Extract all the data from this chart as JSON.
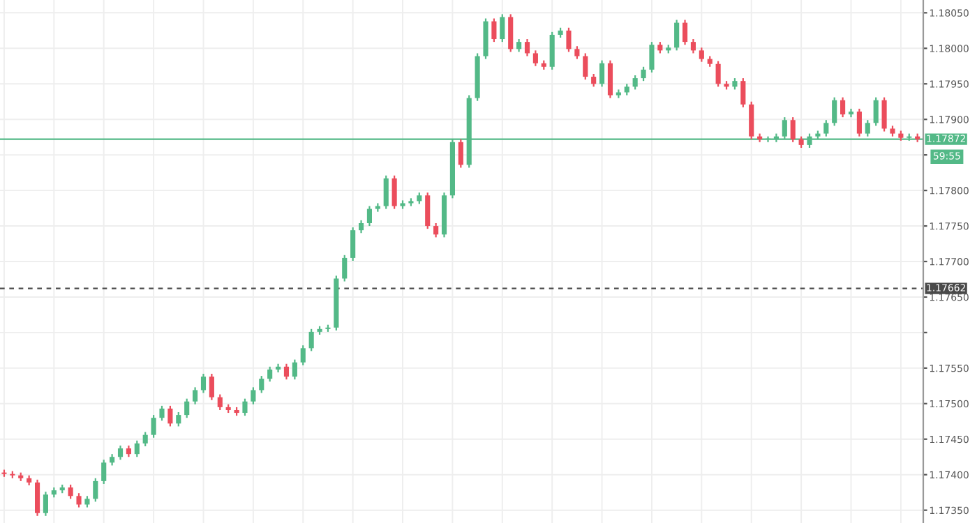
{
  "chart_data": {
    "type": "candlestick",
    "categories": [
      null,
      null,
      null,
      null,
      null,
      null,
      null,
      null,
      null,
      null,
      null,
      null,
      null,
      null,
      null,
      null,
      null,
      null,
      null,
      null,
      null,
      null,
      null,
      null,
      null,
      null,
      null,
      null,
      null,
      null,
      null,
      null,
      null,
      null,
      null,
      null,
      null,
      null,
      null,
      null,
      null,
      null,
      null,
      null,
      null,
      null,
      null,
      null,
      null,
      null,
      null,
      null,
      null,
      null,
      null,
      null,
      null,
      null,
      null,
      null,
      null,
      null,
      null,
      null,
      null,
      null,
      null,
      null,
      null,
      null,
      null,
      null,
      null,
      null,
      null,
      null,
      null,
      null,
      null,
      null,
      null,
      null,
      null,
      null,
      null,
      null,
      null,
      null,
      null,
      null,
      null,
      null,
      null,
      null,
      null,
      null,
      null,
      null,
      null,
      null,
      null,
      null,
      null,
      null,
      null,
      null,
      null,
      null,
      null,
      null,
      null
    ],
    "ohlc": [
      [
        1.17403,
        1.17407,
        1.17397,
        1.17401
      ],
      [
        1.17401,
        1.17405,
        1.17395,
        1.17399
      ],
      [
        1.17399,
        1.17403,
        1.17391,
        1.17395
      ],
      [
        1.17395,
        1.17399,
        1.17385,
        1.17389
      ],
      [
        1.17389,
        1.17393,
        1.17342,
        1.17346
      ],
      [
        1.17346,
        1.17376,
        1.17342,
        1.17372
      ],
      [
        1.17372,
        1.17382,
        1.17368,
        1.17378
      ],
      [
        1.17378,
        1.17386,
        1.17374,
        1.17382
      ],
      [
        1.17382,
        1.17386,
        1.17366,
        1.1737
      ],
      [
        1.1737,
        1.17374,
        1.17354,
        1.17358
      ],
      [
        1.17358,
        1.1737,
        1.17354,
        1.17366
      ],
      [
        1.17366,
        1.17395,
        1.17362,
        1.17391
      ],
      [
        1.17391,
        1.17421,
        1.17387,
        1.17417
      ],
      [
        1.17417,
        1.17429,
        1.17413,
        1.17425
      ],
      [
        1.17425,
        1.17441,
        1.17421,
        1.17437
      ],
      [
        1.17437,
        1.17441,
        1.17425,
        1.17429
      ],
      [
        1.17429,
        1.17448,
        1.17425,
        1.17444
      ],
      [
        1.17444,
        1.1746,
        1.1744,
        1.17456
      ],
      [
        1.17456,
        1.17484,
        1.17452,
        1.1748
      ],
      [
        1.1748,
        1.17497,
        1.17476,
        1.17493
      ],
      [
        1.17493,
        1.17497,
        1.17468,
        1.17472
      ],
      [
        1.17472,
        1.17488,
        1.17468,
        1.17484
      ],
      [
        1.17484,
        1.17507,
        1.1748,
        1.17503
      ],
      [
        1.17503,
        1.17523,
        1.17499,
        1.17519
      ],
      [
        1.17519,
        1.17542,
        1.17515,
        1.17538
      ],
      [
        1.17538,
        1.17542,
        1.17505,
        1.17509
      ],
      [
        1.17509,
        1.17513,
        1.17491,
        1.17495
      ],
      [
        1.17495,
        1.17499,
        1.17487,
        1.17491
      ],
      [
        1.17491,
        1.17495,
        1.17483,
        1.17487
      ],
      [
        1.17487,
        1.17507,
        1.17483,
        1.17503
      ],
      [
        1.17503,
        1.17523,
        1.17499,
        1.17519
      ],
      [
        1.17519,
        1.17539,
        1.17515,
        1.17535
      ],
      [
        1.17535,
        1.17552,
        1.17531,
        1.17548
      ],
      [
        1.17548,
        1.17556,
        1.17544,
        1.17552
      ],
      [
        1.17552,
        1.17556,
        1.17534,
        1.17538
      ],
      [
        1.17538,
        1.17562,
        1.17534,
        1.17558
      ],
      [
        1.17558,
        1.17582,
        1.17554,
        1.17578
      ],
      [
        1.17578,
        1.17605,
        1.17574,
        1.17601
      ],
      [
        1.17601,
        1.17609,
        1.17597,
        1.17605
      ],
      [
        1.17605,
        1.17611,
        1.17601,
        1.17607
      ],
      [
        1.17607,
        1.1768,
        1.17603,
        1.17676
      ],
      [
        1.17676,
        1.17709,
        1.17672,
        1.17705
      ],
      [
        1.17705,
        1.17748,
        1.17701,
        1.17744
      ],
      [
        1.17744,
        1.17758,
        1.1774,
        1.17754
      ],
      [
        1.17754,
        1.17778,
        1.1775,
        1.17774
      ],
      [
        1.17774,
        1.17782,
        1.1777,
        1.17778
      ],
      [
        1.17778,
        1.17821,
        1.17774,
        1.17817
      ],
      [
        1.17817,
        1.17821,
        1.17774,
        1.17778
      ],
      [
        1.17778,
        1.17786,
        1.17774,
        1.17782
      ],
      [
        1.17782,
        1.17789,
        1.17778,
        1.17785
      ],
      [
        1.17785,
        1.17797,
        1.17781,
        1.17793
      ],
      [
        1.17793,
        1.17797,
        1.17746,
        1.1775
      ],
      [
        1.1775,
        1.17754,
        1.17734,
        1.17738
      ],
      [
        1.17738,
        1.17797,
        1.17734,
        1.17793
      ],
      [
        1.17793,
        1.17872,
        1.17789,
        1.17868
      ],
      [
        1.17868,
        1.17872,
        1.17832,
        1.17836
      ],
      [
        1.17836,
        1.17934,
        1.17832,
        1.1793
      ],
      [
        1.1793,
        1.17993,
        1.17926,
        1.17989
      ],
      [
        1.17989,
        1.18042,
        1.17985,
        1.18038
      ],
      [
        1.18038,
        1.18042,
        1.18009,
        1.18013
      ],
      [
        1.18013,
        1.18048,
        1.18009,
        1.18044
      ],
      [
        1.18044,
        1.18048,
        1.17995,
        1.17999
      ],
      [
        1.17999,
        1.18013,
        1.17995,
        1.18009
      ],
      [
        1.18009,
        1.18013,
        1.17989,
        1.17993
      ],
      [
        1.17993,
        1.17997,
        1.17975,
        1.17979
      ],
      [
        1.17979,
        1.17983,
        1.1797,
        1.17974
      ],
      [
        1.17974,
        1.18023,
        1.1797,
        1.18019
      ],
      [
        1.18019,
        1.18029,
        1.18015,
        1.18025
      ],
      [
        1.18025,
        1.18029,
        1.17995,
        1.17999
      ],
      [
        1.17999,
        1.18003,
        1.17985,
        1.17989
      ],
      [
        1.17989,
        1.17993,
        1.17956,
        1.1796
      ],
      [
        1.1796,
        1.17964,
        1.17946,
        1.1795
      ],
      [
        1.1795,
        1.17983,
        1.17946,
        1.17979
      ],
      [
        1.17979,
        1.17983,
        1.1793,
        1.17934
      ],
      [
        1.17934,
        1.17942,
        1.1793,
        1.17938
      ],
      [
        1.17938,
        1.1795,
        1.17934,
        1.17946
      ],
      [
        1.17946,
        1.17962,
        1.17942,
        1.17958
      ],
      [
        1.17958,
        1.17974,
        1.17954,
        1.1797
      ],
      [
        1.1797,
        1.18009,
        1.17966,
        1.18005
      ],
      [
        1.18005,
        1.18009,
        1.17993,
        1.17997
      ],
      [
        1.17997,
        1.18005,
        1.17993,
        1.18001
      ],
      [
        1.18001,
        1.1804,
        1.17997,
        1.18036
      ],
      [
        1.18036,
        1.1804,
        1.18005,
        1.18009
      ],
      [
        1.18009,
        1.18013,
        1.17993,
        1.17997
      ],
      [
        1.17997,
        1.18001,
        1.17981,
        1.17985
      ],
      [
        1.17985,
        1.17989,
        1.17974,
        1.17978
      ],
      [
        1.17978,
        1.17982,
        1.17946,
        1.1795
      ],
      [
        1.1795,
        1.17954,
        1.17942,
        1.17946
      ],
      [
        1.17946,
        1.17958,
        1.17942,
        1.17954
      ],
      [
        1.17954,
        1.17958,
        1.17917,
        1.17921
      ],
      [
        1.17921,
        1.17925,
        1.17872,
        1.17876
      ],
      [
        1.17876,
        1.1788,
        1.17868,
        1.17872
      ],
      [
        1.17872,
        1.17876,
        1.17868,
        1.17872
      ],
      [
        1.17872,
        1.1788,
        1.17868,
        1.17876
      ],
      [
        1.17876,
        1.17903,
        1.17872,
        1.17899
      ],
      [
        1.17899,
        1.17903,
        1.17868,
        1.17872
      ],
      [
        1.17872,
        1.17876,
        1.1786,
        1.17864
      ],
      [
        1.17864,
        1.1788,
        1.1786,
        1.17876
      ],
      [
        1.17876,
        1.17884,
        1.17872,
        1.1788
      ],
      [
        1.1788,
        1.17899,
        1.17876,
        1.17895
      ],
      [
        1.17895,
        1.17931,
        1.17891,
        1.17927
      ],
      [
        1.17927,
        1.17931,
        1.17903,
        1.17907
      ],
      [
        1.17907,
        1.17915,
        1.17903,
        1.17911
      ],
      [
        1.17911,
        1.17915,
        1.17876,
        1.1788
      ],
      [
        1.1788,
        1.17899,
        1.17876,
        1.17895
      ],
      [
        1.17895,
        1.17931,
        1.17891,
        1.17927
      ],
      [
        1.17927,
        1.17931,
        1.17883,
        1.17887
      ],
      [
        1.17887,
        1.17891,
        1.17876,
        1.1788
      ],
      [
        1.1788,
        1.17884,
        1.1787,
        1.17874
      ],
      [
        1.17874,
        1.1788,
        1.1787,
        1.17876
      ],
      [
        1.17876,
        1.1788,
        1.17868,
        1.17872
      ]
    ],
    "ylim": [
      1.17332,
      1.18068
    ],
    "yticks": [
      {
        "value": 1.1805,
        "label": "1.18050"
      },
      {
        "value": 1.18,
        "label": "1.18000"
      },
      {
        "value": 1.1795,
        "label": "1.17950"
      },
      {
        "value": 1.179,
        "label": "1.17900"
      },
      {
        "value": 1.1785,
        "label": null
      },
      {
        "value": 1.178,
        "label": "1.17800"
      },
      {
        "value": 1.1775,
        "label": "1.17750"
      },
      {
        "value": 1.177,
        "label": "1.17700"
      },
      {
        "value": 1.1765,
        "label": "1.17650"
      },
      {
        "value": 1.176,
        "label": null
      },
      {
        "value": 1.1755,
        "label": "1.17550"
      },
      {
        "value": 1.175,
        "label": "1.17500"
      },
      {
        "value": 1.1745,
        "label": "1.17450"
      },
      {
        "value": 1.174,
        "label": "1.17400"
      },
      {
        "value": 1.1735,
        "label": "1.17350"
      }
    ],
    "ref_lines": [
      {
        "axis": "y",
        "value": 1.17872,
        "label": "1.17872",
        "color": "#53b987",
        "line_style": "solid"
      },
      {
        "axis": "y",
        "value": 1.17662,
        "label": "1.17662",
        "color": "#4a4a4a",
        "line_style": "dashed"
      }
    ],
    "annotations": [
      "59:55"
    ],
    "grid": true,
    "tick_labels": "y"
  }
}
